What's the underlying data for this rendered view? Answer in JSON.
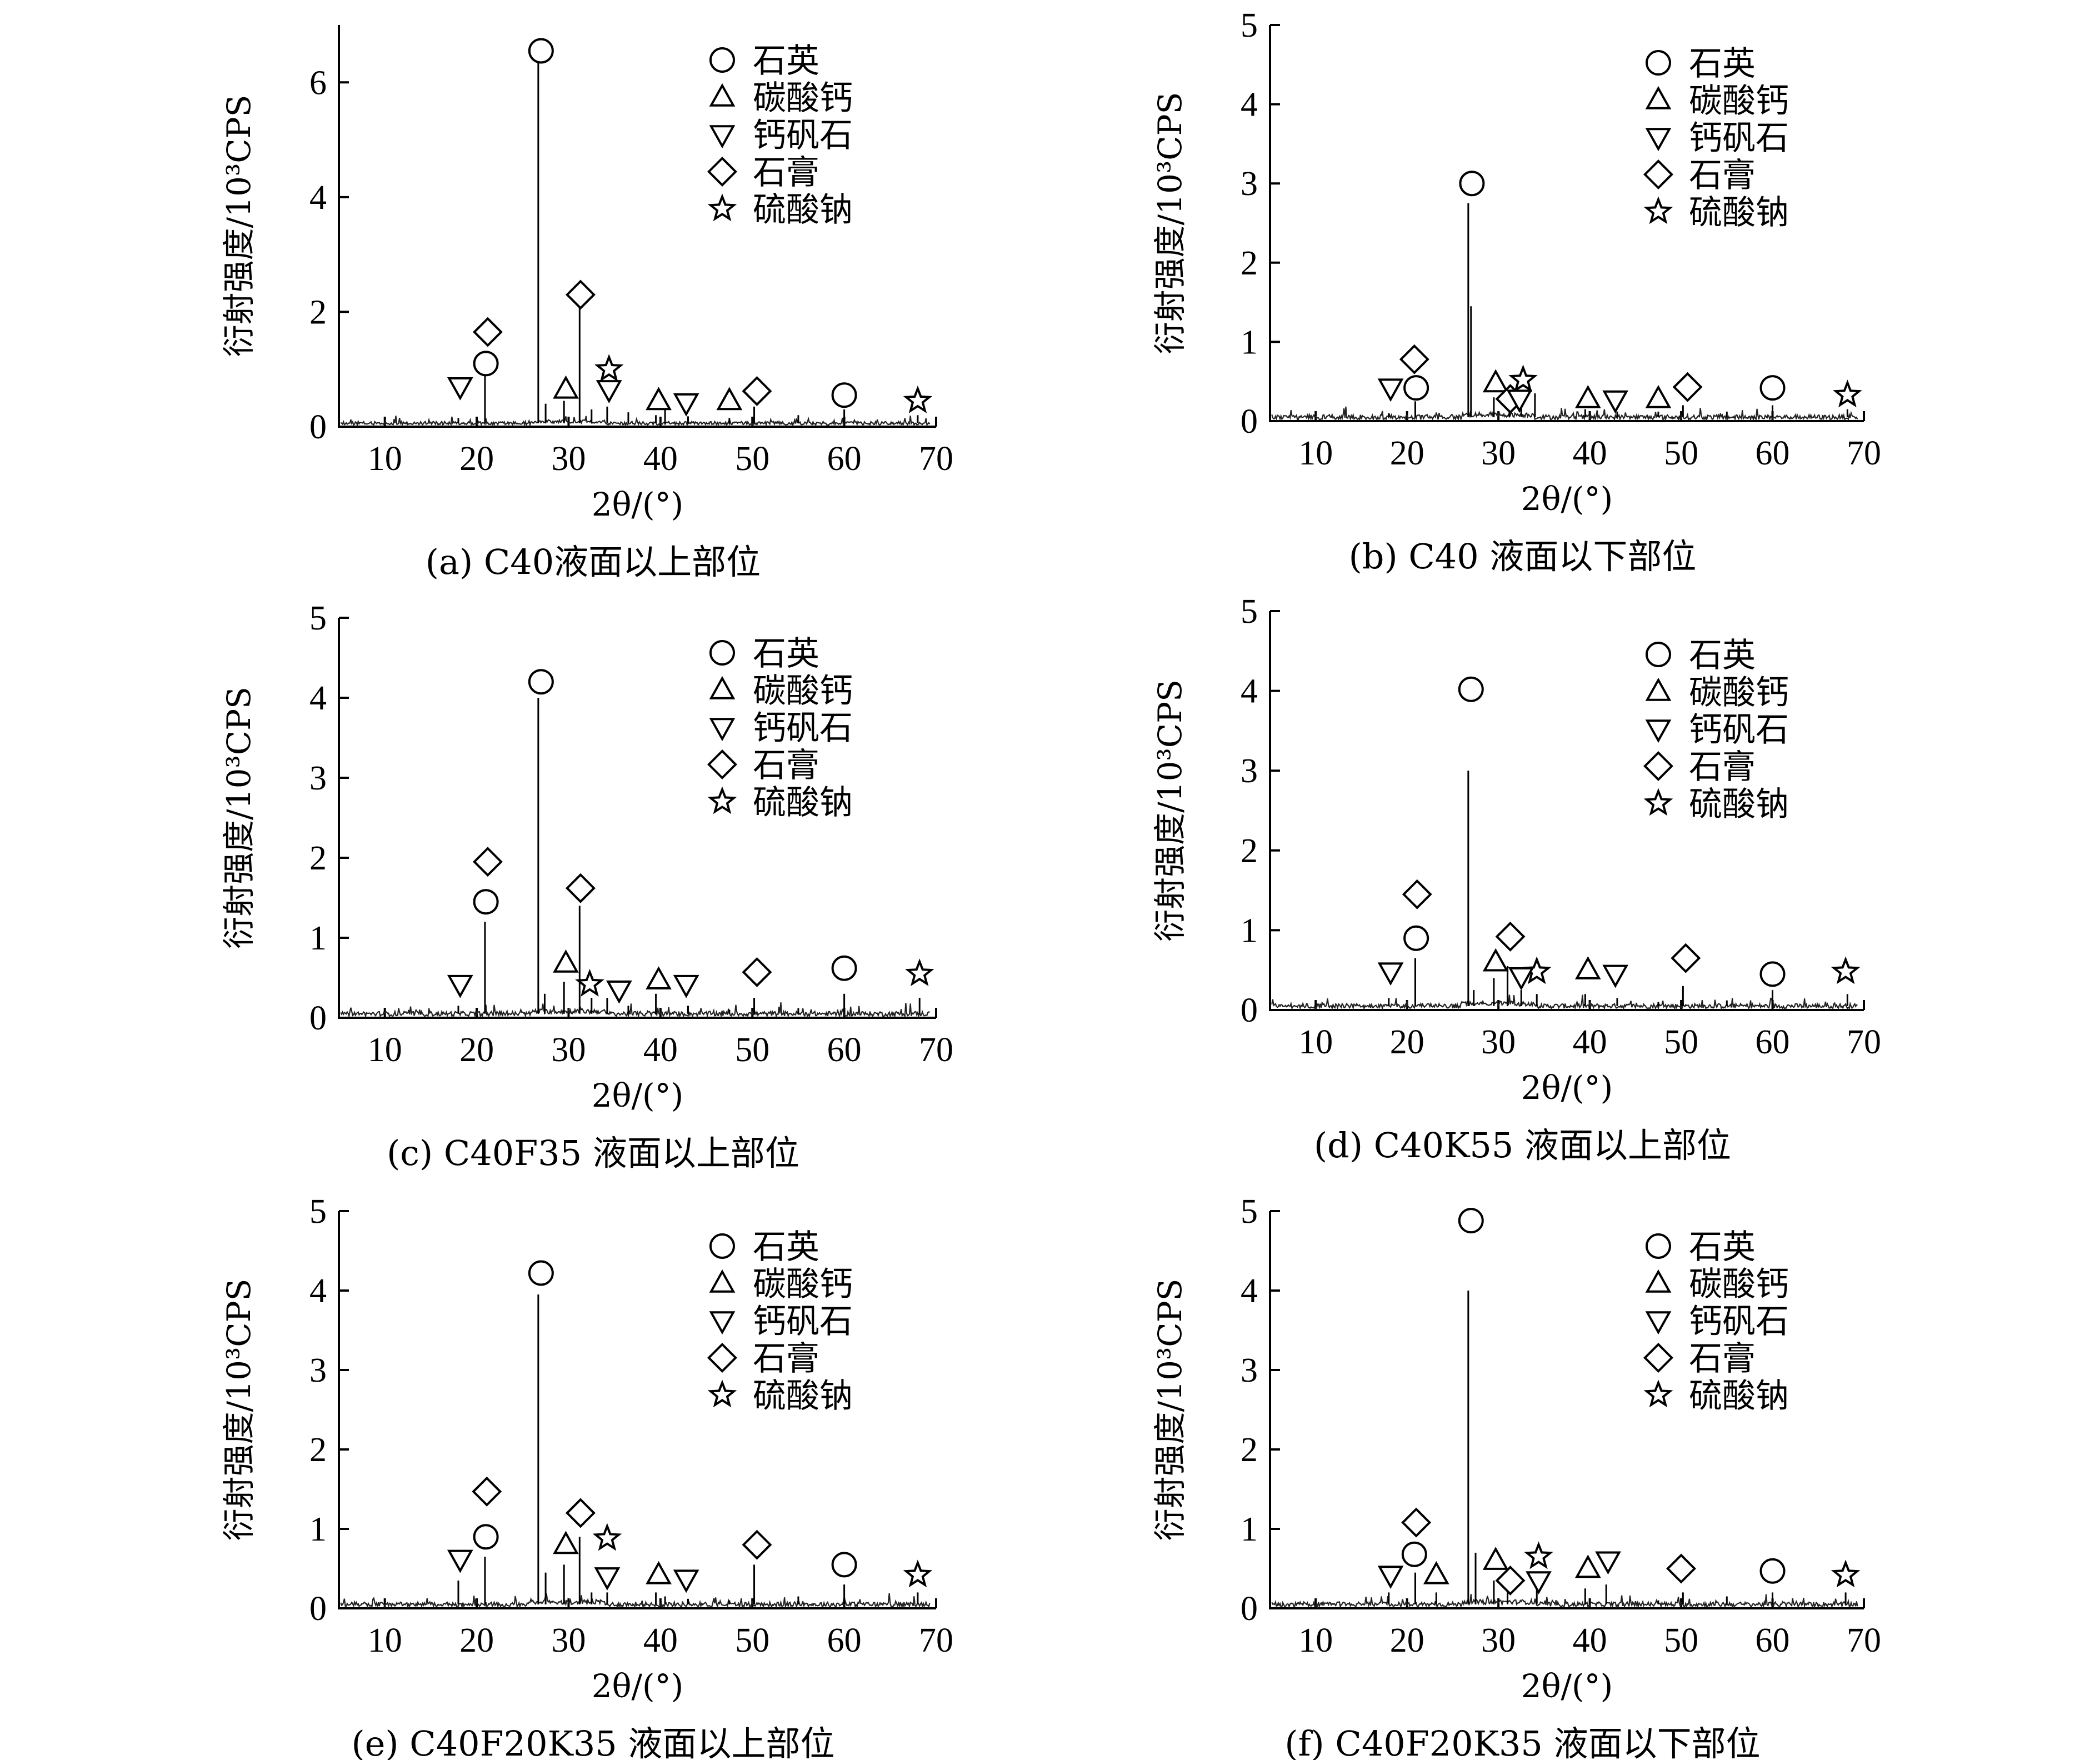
{
  "legend_labels": {
    "circle": "石英",
    "triangle_up": "碳酸钙",
    "triangle_down": "钙矾石",
    "diamond": "石膏",
    "star": "硫酸钠"
  },
  "chart_data": [
    {
      "type": "line",
      "caption": "(a) C40液面以上部位",
      "xlabel": "2θ/(°)",
      "ylabel": "衍射强度/10³CPS",
      "xlim": [
        5,
        70
      ],
      "ylim": [
        0,
        7
      ],
      "xticks": [
        10,
        20,
        30,
        40,
        50,
        60,
        70
      ],
      "yticks": [
        0,
        2,
        4,
        6
      ],
      "legend_position": "top-right",
      "baseline": 0.06,
      "peaks": [
        [
          18.0,
          0.15
        ],
        [
          20.9,
          1.05
        ],
        [
          26.7,
          6.5
        ],
        [
          27.5,
          0.4
        ],
        [
          29.5,
          0.45
        ],
        [
          31.2,
          2.1
        ],
        [
          32.5,
          0.3
        ],
        [
          34.2,
          0.35
        ],
        [
          36.5,
          0.25
        ],
        [
          39.5,
          0.2
        ],
        [
          40.5,
          0.3
        ],
        [
          43.0,
          0.18
        ],
        [
          47.5,
          0.15
        ],
        [
          50.2,
          0.35
        ],
        [
          55.0,
          0.2
        ],
        [
          60.0,
          0.3
        ],
        [
          68.0,
          0.2
        ]
      ],
      "markers": [
        {
          "shape": "triangle_down",
          "x": 18.2,
          "y": 0.7
        },
        {
          "shape": "diamond",
          "x": 21.2,
          "y": 1.65
        },
        {
          "shape": "circle",
          "x": 21.0,
          "y": 1.1
        },
        {
          "shape": "circle",
          "x": 27.0,
          "y": 6.55
        },
        {
          "shape": "triangle_up",
          "x": 29.7,
          "y": 0.65
        },
        {
          "shape": "diamond",
          "x": 31.3,
          "y": 2.3
        },
        {
          "shape": "star",
          "x": 34.4,
          "y": 1.0
        },
        {
          "shape": "triangle_down",
          "x": 34.4,
          "y": 0.65
        },
        {
          "shape": "triangle_up",
          "x": 39.8,
          "y": 0.45
        },
        {
          "shape": "triangle_down",
          "x": 42.8,
          "y": 0.42
        },
        {
          "shape": "triangle_up",
          "x": 47.5,
          "y": 0.45
        },
        {
          "shape": "diamond",
          "x": 50.5,
          "y": 0.62
        },
        {
          "shape": "circle",
          "x": 60.0,
          "y": 0.55
        },
        {
          "shape": "star",
          "x": 68.0,
          "y": 0.45
        }
      ]
    },
    {
      "type": "line",
      "caption": "(b) C40 液面以下部位",
      "xlabel": "2θ/(°)",
      "ylabel": "衍射强度/10³CPS",
      "xlim": [
        5,
        70
      ],
      "ylim": [
        0,
        5
      ],
      "xticks": [
        10,
        20,
        30,
        40,
        50,
        60,
        70
      ],
      "yticks": [
        0,
        1,
        2,
        3,
        4,
        5
      ],
      "legend_position": "top-right",
      "baseline": 0.05,
      "peaks": [
        [
          18.0,
          0.1
        ],
        [
          20.9,
          0.25
        ],
        [
          26.7,
          2.75
        ],
        [
          27.0,
          1.45
        ],
        [
          29.5,
          0.3
        ],
        [
          31.2,
          0.25
        ],
        [
          32.5,
          0.3
        ],
        [
          34.0,
          0.35
        ],
        [
          39.5,
          0.15
        ],
        [
          43.0,
          0.12
        ],
        [
          47.5,
          0.12
        ],
        [
          50.2,
          0.2
        ],
        [
          55.0,
          0.12
        ],
        [
          60.0,
          0.2
        ],
        [
          68.2,
          0.15
        ]
      ],
      "markers": [
        {
          "shape": "triangle_down",
          "x": 18.2,
          "y": 0.42
        },
        {
          "shape": "diamond",
          "x": 20.8,
          "y": 0.78
        },
        {
          "shape": "circle",
          "x": 21.0,
          "y": 0.42
        },
        {
          "shape": "circle",
          "x": 27.1,
          "y": 3.0
        },
        {
          "shape": "triangle_up",
          "x": 29.7,
          "y": 0.48
        },
        {
          "shape": "diamond",
          "x": 31.3,
          "y": 0.28
        },
        {
          "shape": "star",
          "x": 32.7,
          "y": 0.52
        },
        {
          "shape": "triangle_down",
          "x": 32.3,
          "y": 0.28
        },
        {
          "shape": "triangle_up",
          "x": 39.8,
          "y": 0.28
        },
        {
          "shape": "triangle_down",
          "x": 42.8,
          "y": 0.27
        },
        {
          "shape": "triangle_up",
          "x": 47.5,
          "y": 0.28
        },
        {
          "shape": "diamond",
          "x": 50.7,
          "y": 0.43
        },
        {
          "shape": "circle",
          "x": 60.0,
          "y": 0.42
        },
        {
          "shape": "star",
          "x": 68.2,
          "y": 0.33
        }
      ]
    },
    {
      "type": "line",
      "caption": "(c) C40F35 液面以上部位",
      "xlabel": "2θ/(°)",
      "ylabel": "衍射强度/10³CPS",
      "xlim": [
        5,
        70
      ],
      "ylim": [
        0,
        5
      ],
      "xticks": [
        10,
        20,
        30,
        40,
        50,
        60,
        70
      ],
      "yticks": [
        0,
        1,
        2,
        3,
        4,
        5
      ],
      "legend_position": "top-right",
      "baseline": 0.05,
      "peaks": [
        [
          18.0,
          0.15
        ],
        [
          20.9,
          1.2
        ],
        [
          26.7,
          4.0
        ],
        [
          27.4,
          0.3
        ],
        [
          29.5,
          0.45
        ],
        [
          31.2,
          1.4
        ],
        [
          32.5,
          0.25
        ],
        [
          34.2,
          0.25
        ],
        [
          36.5,
          0.15
        ],
        [
          39.5,
          0.3
        ],
        [
          43.0,
          0.15
        ],
        [
          47.5,
          0.1
        ],
        [
          50.2,
          0.25
        ],
        [
          55.0,
          0.12
        ],
        [
          60.0,
          0.3
        ],
        [
          68.2,
          0.25
        ]
      ],
      "markers": [
        {
          "shape": "triangle_down",
          "x": 18.2,
          "y": 0.42
        },
        {
          "shape": "diamond",
          "x": 21.2,
          "y": 1.95
        },
        {
          "shape": "circle",
          "x": 21.0,
          "y": 1.45
        },
        {
          "shape": "circle",
          "x": 27.0,
          "y": 4.2
        },
        {
          "shape": "triangle_up",
          "x": 29.7,
          "y": 0.68
        },
        {
          "shape": "diamond",
          "x": 31.3,
          "y": 1.62
        },
        {
          "shape": "star",
          "x": 32.3,
          "y": 0.42
        },
        {
          "shape": "triangle_down",
          "x": 35.5,
          "y": 0.35
        },
        {
          "shape": "triangle_up",
          "x": 39.8,
          "y": 0.47
        },
        {
          "shape": "triangle_down",
          "x": 42.8,
          "y": 0.42
        },
        {
          "shape": "diamond",
          "x": 50.5,
          "y": 0.57
        },
        {
          "shape": "circle",
          "x": 60.0,
          "y": 0.62
        },
        {
          "shape": "star",
          "x": 68.2,
          "y": 0.55
        }
      ]
    },
    {
      "type": "line",
      "caption": "(d) C40K55 液面以上部位",
      "xlabel": "2θ/(°)",
      "ylabel": "衍射强度/10³CPS",
      "xlim": [
        5,
        70
      ],
      "ylim": [
        0,
        5
      ],
      "xticks": [
        10,
        20,
        30,
        40,
        50,
        60,
        70
      ],
      "yticks": [
        0,
        1,
        2,
        3,
        4,
        5
      ],
      "legend_position": "top-right",
      "baseline": 0.05,
      "peaks": [
        [
          18.0,
          0.15
        ],
        [
          20.9,
          0.65
        ],
        [
          26.7,
          3.0
        ],
        [
          27.3,
          0.25
        ],
        [
          29.5,
          0.4
        ],
        [
          31.0,
          0.55
        ],
        [
          32.5,
          0.25
        ],
        [
          34.2,
          0.2
        ],
        [
          39.5,
          0.2
        ],
        [
          43.0,
          0.15
        ],
        [
          47.5,
          0.1
        ],
        [
          50.2,
          0.3
        ],
        [
          55.0,
          0.12
        ],
        [
          60.0,
          0.25
        ],
        [
          68.2,
          0.2
        ]
      ],
      "markers": [
        {
          "shape": "triangle_down",
          "x": 18.2,
          "y": 0.48
        },
        {
          "shape": "diamond",
          "x": 21.1,
          "y": 1.45
        },
        {
          "shape": "circle",
          "x": 21.0,
          "y": 0.9
        },
        {
          "shape": "circle",
          "x": 27.0,
          "y": 4.02
        },
        {
          "shape": "triangle_up",
          "x": 29.7,
          "y": 0.6
        },
        {
          "shape": "diamond",
          "x": 31.3,
          "y": 0.92
        },
        {
          "shape": "star",
          "x": 34.2,
          "y": 0.48
        },
        {
          "shape": "triangle_down",
          "x": 32.5,
          "y": 0.42
        },
        {
          "shape": "triangle_up",
          "x": 39.8,
          "y": 0.5
        },
        {
          "shape": "triangle_down",
          "x": 42.8,
          "y": 0.45
        },
        {
          "shape": "diamond",
          "x": 50.5,
          "y": 0.65
        },
        {
          "shape": "circle",
          "x": 60.0,
          "y": 0.45
        },
        {
          "shape": "star",
          "x": 68.0,
          "y": 0.48
        }
      ]
    },
    {
      "type": "line",
      "caption": "(e) C40F20K35 液面以上部位",
      "xlabel": "2θ/(°)",
      "ylabel": "衍射强度/10³CPS",
      "xlim": [
        5,
        70
      ],
      "ylim": [
        0,
        5
      ],
      "xticks": [
        10,
        20,
        30,
        40,
        50,
        60,
        70
      ],
      "yticks": [
        0,
        1,
        2,
        3,
        4,
        5
      ],
      "legend_position": "top-right",
      "baseline": 0.05,
      "peaks": [
        [
          18.0,
          0.35
        ],
        [
          20.9,
          0.65
        ],
        [
          26.7,
          3.95
        ],
        [
          27.5,
          0.45
        ],
        [
          29.5,
          0.55
        ],
        [
          31.2,
          0.9
        ],
        [
          32.5,
          0.2
        ],
        [
          34.2,
          0.2
        ],
        [
          39.5,
          0.2
        ],
        [
          40.5,
          0.15
        ],
        [
          43.0,
          0.12
        ],
        [
          47.5,
          0.1
        ],
        [
          50.2,
          0.55
        ],
        [
          55.0,
          0.15
        ],
        [
          60.0,
          0.3
        ],
        [
          68.0,
          0.2
        ]
      ],
      "markers": [
        {
          "shape": "triangle_down",
          "x": 18.2,
          "y": 0.62
        },
        {
          "shape": "diamond",
          "x": 21.1,
          "y": 1.47
        },
        {
          "shape": "circle",
          "x": 21.0,
          "y": 0.9
        },
        {
          "shape": "circle",
          "x": 27.0,
          "y": 4.22
        },
        {
          "shape": "triangle_up",
          "x": 29.7,
          "y": 0.8
        },
        {
          "shape": "diamond",
          "x": 31.3,
          "y": 1.2
        },
        {
          "shape": "star",
          "x": 34.2,
          "y": 0.88
        },
        {
          "shape": "triangle_down",
          "x": 34.2,
          "y": 0.4
        },
        {
          "shape": "triangle_up",
          "x": 39.8,
          "y": 0.42
        },
        {
          "shape": "triangle_down",
          "x": 42.8,
          "y": 0.37
        },
        {
          "shape": "diamond",
          "x": 50.5,
          "y": 0.8
        },
        {
          "shape": "circle",
          "x": 60.0,
          "y": 0.55
        },
        {
          "shape": "star",
          "x": 68.0,
          "y": 0.42
        }
      ]
    },
    {
      "type": "line",
      "caption": "(f) C40F20K35 液面以下部位",
      "xlabel": "2θ/(°)",
      "ylabel": "衍射强度/10³CPS",
      "xlim": [
        5,
        70
      ],
      "ylim": [
        0,
        5
      ],
      "xticks": [
        10,
        20,
        30,
        40,
        50,
        60,
        70
      ],
      "yticks": [
        0,
        1,
        2,
        3,
        4,
        5
      ],
      "legend_position": "top-right",
      "baseline": 0.05,
      "peaks": [
        [
          18.0,
          0.2
        ],
        [
          20.9,
          0.45
        ],
        [
          23.2,
          0.2
        ],
        [
          26.7,
          4.0
        ],
        [
          27.5,
          0.7
        ],
        [
          29.5,
          0.35
        ],
        [
          31.0,
          0.2
        ],
        [
          34.2,
          0.35
        ],
        [
          39.5,
          0.25
        ],
        [
          41.8,
          0.3
        ],
        [
          47.5,
          0.1
        ],
        [
          50.2,
          0.2
        ],
        [
          55.0,
          0.15
        ],
        [
          60.0,
          0.2
        ],
        [
          68.0,
          0.2
        ]
      ],
      "markers": [
        {
          "shape": "triangle_down",
          "x": 18.2,
          "y": 0.42
        },
        {
          "shape": "diamond",
          "x": 21.0,
          "y": 1.08
        },
        {
          "shape": "circle",
          "x": 20.8,
          "y": 0.68
        },
        {
          "shape": "triangle_up",
          "x": 23.2,
          "y": 0.42
        },
        {
          "shape": "circle",
          "x": 27.0,
          "y": 4.88
        },
        {
          "shape": "triangle_up",
          "x": 29.7,
          "y": 0.6
        },
        {
          "shape": "diamond",
          "x": 31.3,
          "y": 0.35
        },
        {
          "shape": "star",
          "x": 34.4,
          "y": 0.65
        },
        {
          "shape": "triangle_down",
          "x": 34.4,
          "y": 0.35
        },
        {
          "shape": "triangle_up",
          "x": 39.8,
          "y": 0.5
        },
        {
          "shape": "triangle_down",
          "x": 42.0,
          "y": 0.6
        },
        {
          "shape": "diamond",
          "x": 50.0,
          "y": 0.5
        },
        {
          "shape": "circle",
          "x": 60.0,
          "y": 0.47
        },
        {
          "shape": "star",
          "x": 68.0,
          "y": 0.42
        }
      ]
    }
  ]
}
